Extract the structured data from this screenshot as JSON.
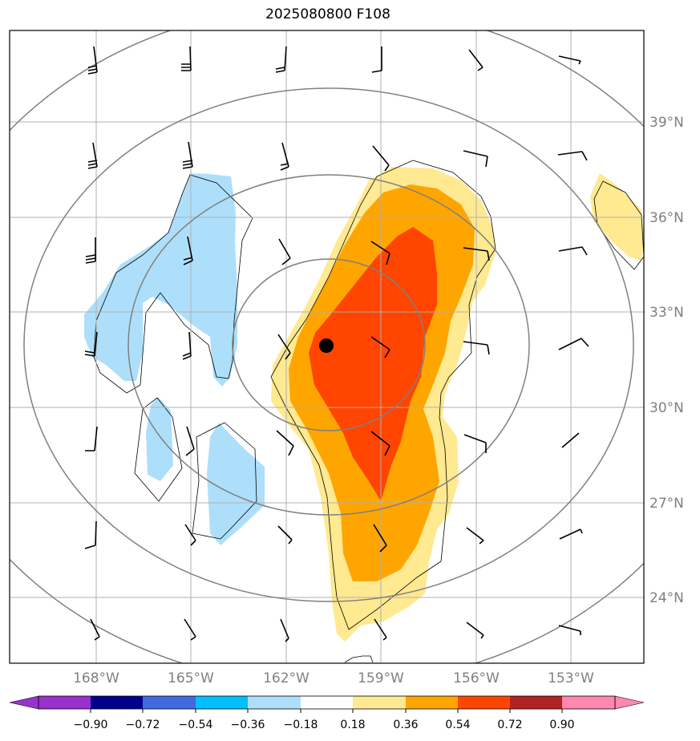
{
  "title": "2025080800 F108",
  "map": {
    "lat_labels": [
      "39°N",
      "36°N",
      "33°N",
      "30°N",
      "27°N",
      "24°N"
    ],
    "lon_labels": [
      "168°W",
      "165°W",
      "162°W",
      "159°W",
      "156°W",
      "153°W"
    ],
    "storm_center": {
      "lon": "-160.7",
      "lat": "31.9"
    },
    "colors": {
      "light_blue": "#ADDFFB",
      "light_yellow": "#FFE991",
      "orange": "#FFA500",
      "red_orange": "#FF4500",
      "grid": "#B0B0B0",
      "range_rings": "#808080"
    }
  },
  "colorbar": {
    "ticks": [
      "−0.90",
      "−0.72",
      "−0.54",
      "−0.36",
      "−0.18",
      "0.18",
      "0.36",
      "0.54",
      "0.72",
      "0.90"
    ],
    "colors": [
      "#9932CC",
      "#00008B",
      "#4169E1",
      "#00BFFF",
      "#ADDFFB",
      "#FFFFFF",
      "#FFE991",
      "#FFA500",
      "#FF4500",
      "#B22222",
      "#FF88B0"
    ]
  }
}
